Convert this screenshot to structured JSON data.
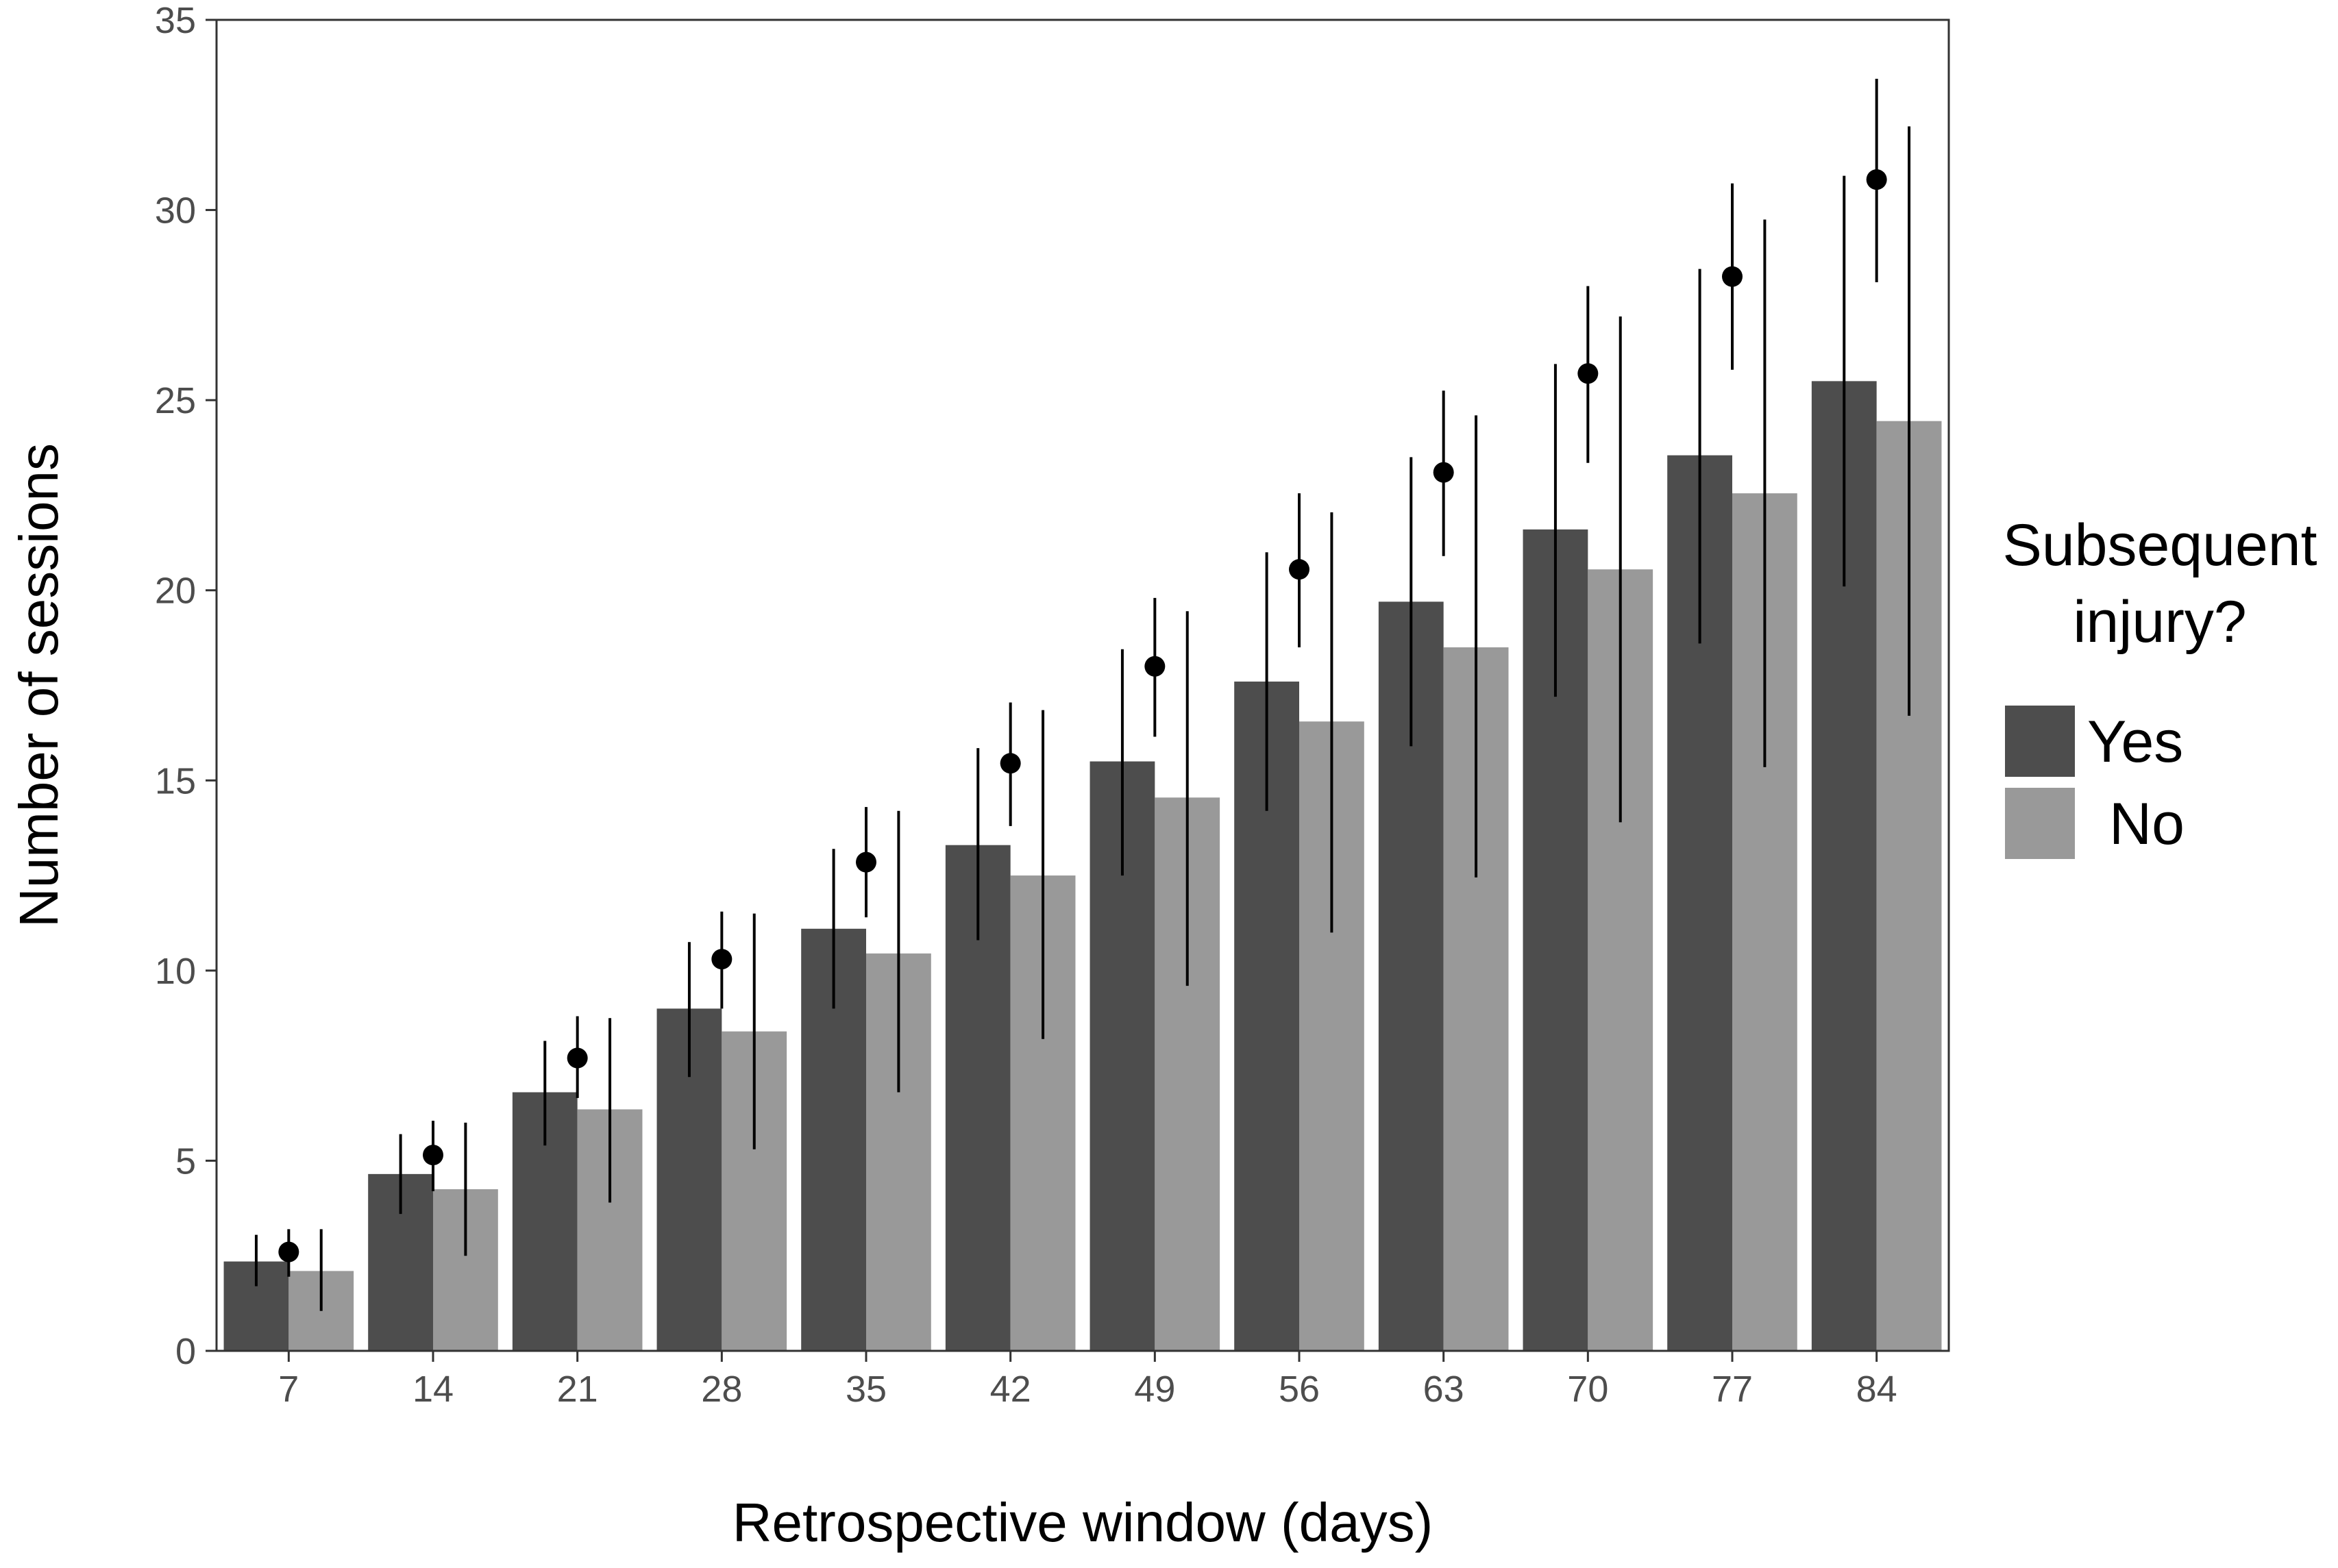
{
  "chart_data": {
    "type": "bar",
    "title": "",
    "xlabel": "Retrospective window (days)",
    "ylabel": "Number of sessions",
    "ylim": [
      0,
      35
    ],
    "y_ticks": [
      "0",
      "5",
      "10",
      "15",
      "20",
      "25",
      "30",
      "35"
    ],
    "grid": false,
    "categories": [
      "7",
      "14",
      "21",
      "28",
      "35",
      "42",
      "49",
      "56",
      "63",
      "70",
      "77",
      "84"
    ],
    "series": [
      {
        "name": "Yes",
        "color": "#4d4d4d",
        "values": [
          2.35,
          4.65,
          6.8,
          9.0,
          11.1,
          13.3,
          15.5,
          17.6,
          19.7,
          21.6,
          23.55,
          25.5
        ],
        "error_low": [
          1.7,
          3.6,
          5.4,
          7.2,
          9.0,
          10.8,
          12.5,
          14.2,
          15.9,
          17.2,
          18.6,
          20.1
        ],
        "error_high": [
          3.05,
          5.7,
          8.15,
          10.75,
          13.2,
          15.85,
          18.45,
          21.0,
          23.5,
          25.95,
          28.45,
          30.9
        ]
      },
      {
        "name": "No",
        "color": "#999999",
        "values": [
          2.1,
          4.25,
          6.35,
          8.4,
          10.45,
          12.5,
          14.55,
          16.55,
          18.5,
          20.55,
          22.55,
          24.45
        ],
        "error_low": [
          1.05,
          2.5,
          3.9,
          5.3,
          6.8,
          8.2,
          9.6,
          11.0,
          12.45,
          13.9,
          15.35,
          16.7
        ],
        "error_high": [
          3.2,
          6.0,
          8.75,
          11.5,
          14.2,
          16.85,
          19.45,
          22.05,
          24.6,
          27.2,
          29.75,
          32.2
        ]
      }
    ],
    "points": {
      "values": [
        2.6,
        5.15,
        7.7,
        10.3,
        12.85,
        15.45,
        18.0,
        20.55,
        23.1,
        25.7,
        28.25,
        30.8
      ],
      "error_low": [
        1.95,
        4.2,
        6.65,
        9.0,
        11.4,
        13.8,
        16.15,
        18.5,
        20.9,
        23.35,
        25.8,
        28.1
      ],
      "error_high": [
        3.2,
        6.05,
        8.8,
        11.55,
        14.3,
        17.05,
        19.8,
        22.55,
        25.25,
        28.0,
        30.7,
        33.45
      ]
    },
    "legend": {
      "title_lines": [
        "Subsequent",
        "injury?"
      ],
      "position": "right"
    }
  }
}
